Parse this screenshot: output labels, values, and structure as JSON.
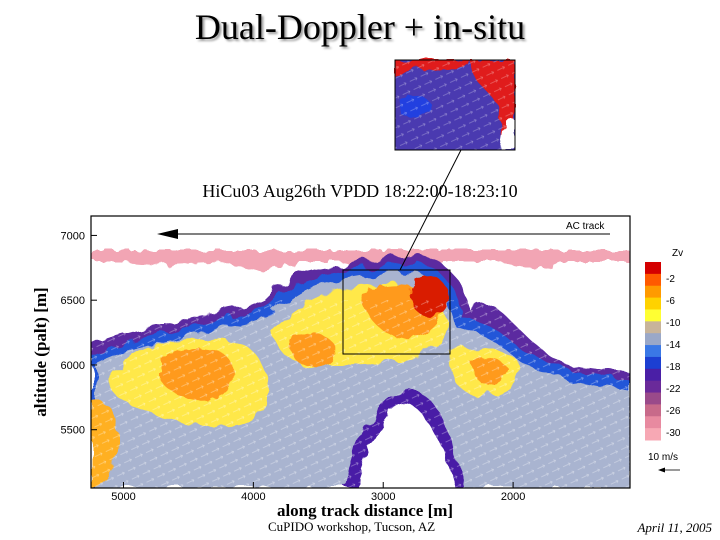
{
  "slide": {
    "title": "Dual-Doppler + in-situ",
    "footer_left": "CuPIDO workshop, Tucson, AZ",
    "footer_right": "April 11, 2005"
  },
  "chart_data": {
    "type": "heatmap",
    "title": "HiCu03 Aug26th VPDD 18:22:00-18:23:10",
    "xlabel": "along track distance [m]",
    "ylabel": "altitude (palt) [m]",
    "x_ticks": [
      5000,
      4000,
      3000,
      2000
    ],
    "y_ticks": [
      7000,
      6500,
      6000,
      5500
    ],
    "xlim": [
      5250,
      1100
    ],
    "ylim": [
      5050,
      7150
    ],
    "track_label": "AC track",
    "track_altitude": 7000,
    "colorbar": {
      "label": "Zv",
      "ticks": [
        -2,
        -6,
        -10,
        -14,
        -18,
        -22,
        -26,
        -30
      ],
      "colors": [
        "#d40000",
        "#ff5a00",
        "#ff9a00",
        "#ffd200",
        "#ffff33",
        "#c8b49a",
        "#9aa8c8",
        "#3a78e6",
        "#1c3fd2",
        "#4a1fa6",
        "#6a2a9a",
        "#9a4a8a",
        "#c86a8a",
        "#e88aa0",
        "#f7a8b4"
      ]
    },
    "vector_scale_label": "10 m/s",
    "annotation": "zoom inset of region x 3300–2500 m, altitude 6100–6700 m"
  }
}
